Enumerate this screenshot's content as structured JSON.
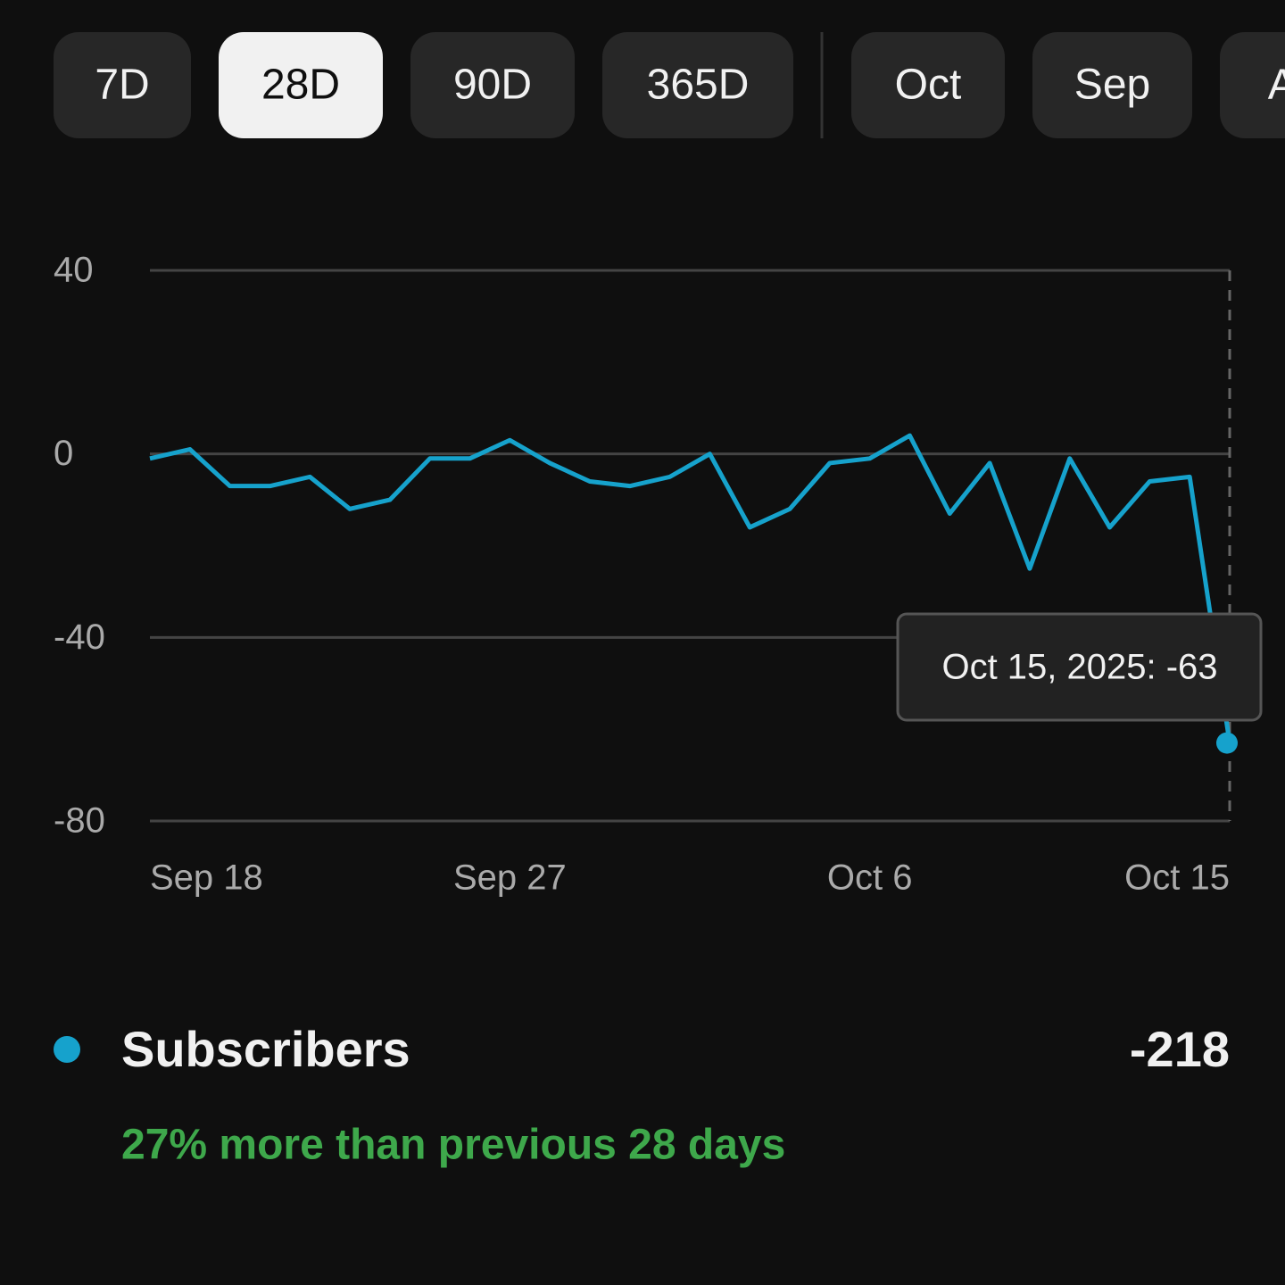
{
  "tabs": [
    "7D",
    "28D",
    "90D",
    "365D",
    "Oct",
    "Sep",
    "Aug"
  ],
  "selected_tab": 1,
  "chart_data": {
    "type": "line",
    "categories": [
      "Sep 18",
      null,
      null,
      null,
      null,
      null,
      null,
      null,
      null,
      "Sep 27",
      null,
      null,
      null,
      null,
      null,
      null,
      null,
      null,
      "Oct 6",
      null,
      null,
      null,
      null,
      null,
      null,
      null,
      null,
      "Oct 15"
    ],
    "series": [
      {
        "name": "Subscribers",
        "color": "#16a2cc",
        "values": [
          -1,
          1,
          -7,
          -7,
          -5,
          -12,
          -10,
          -1,
          -1,
          3,
          -2,
          -6,
          -7,
          -5,
          0,
          -16,
          -12,
          -2,
          -1,
          4,
          -13,
          -2,
          -25,
          -1,
          -16,
          -6,
          -5,
          -63
        ]
      }
    ],
    "ylim": [
      -80,
      40
    ],
    "yticks": [
      -80,
      -40,
      0,
      40
    ],
    "grid": true,
    "tooltip": "Oct 15, 2025: -63"
  },
  "summary": {
    "total": "-218",
    "comparison": "27% more than previous 28 days"
  }
}
